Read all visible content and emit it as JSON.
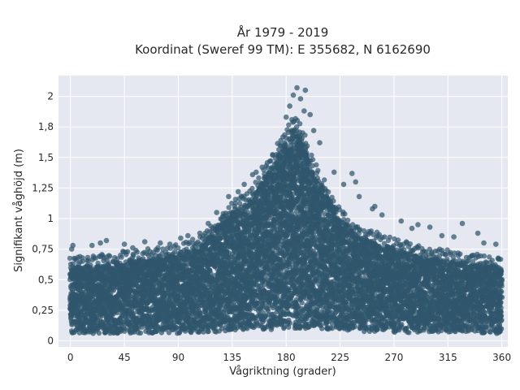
{
  "chart_data": {
    "type": "scatter",
    "title": "År 1979 - 2019",
    "subtitle": "Koordinat (Sweref 99 TM): E 355682, N 6162690",
    "xlabel": "Vågriktning (grader)",
    "ylabel": "Signifikant våghöjd (m)",
    "xlim": [
      -10,
      365
    ],
    "ylim": [
      -0.05,
      2.17
    ],
    "x_ticks": [
      0,
      45,
      90,
      135,
      180,
      225,
      270,
      315,
      360
    ],
    "x_tick_labels": [
      "0",
      "45",
      "90",
      "135",
      "180",
      "225",
      "270",
      "315",
      "360"
    ],
    "y_ticks": [
      0,
      0.25,
      0.5,
      0.75,
      1,
      1.25,
      1.5,
      1.75,
      2
    ],
    "y_tick_labels": [
      "0",
      "0,25",
      "0,5",
      "0,75",
      "1",
      "1,25",
      "1,5",
      "1,8",
      "2"
    ],
    "grid": true,
    "marker_color": "#2f566c",
    "background_color": "#e5e8f1",
    "upper_envelope": {
      "x": [
        0,
        30,
        60,
        90,
        110,
        120,
        135,
        150,
        160,
        170,
        180,
        185,
        190,
        195,
        200,
        210,
        225,
        240,
        270,
        300,
        330,
        360
      ],
      "y": [
        0.6,
        0.63,
        0.66,
        0.7,
        0.78,
        0.9,
        1.05,
        1.15,
        1.3,
        1.45,
        1.65,
        1.75,
        1.72,
        1.62,
        1.45,
        1.25,
        1.0,
        0.85,
        0.75,
        0.68,
        0.63,
        0.6
      ]
    },
    "lower_envelope": {
      "x": [
        0,
        90,
        150,
        180,
        200,
        250,
        360
      ],
      "y": [
        0.06,
        0.06,
        0.08,
        0.1,
        0.1,
        0.07,
        0.06
      ]
    },
    "outliers": [
      {
        "x": 189,
        "y": 2.07
      },
      {
        "x": 196,
        "y": 2.05
      },
      {
        "x": 186,
        "y": 2.01
      },
      {
        "x": 192,
        "y": 1.98
      },
      {
        "x": 183,
        "y": 1.92
      },
      {
        "x": 195,
        "y": 1.88
      },
      {
        "x": 200,
        "y": 1.85
      },
      {
        "x": 180,
        "y": 1.83
      },
      {
        "x": 203,
        "y": 1.72
      },
      {
        "x": 208,
        "y": 1.62
      },
      {
        "x": 175,
        "y": 1.6
      },
      {
        "x": 220,
        "y": 1.38
      },
      {
        "x": 235,
        "y": 1.37
      },
      {
        "x": 238,
        "y": 1.3
      },
      {
        "x": 228,
        "y": 1.28
      },
      {
        "x": 241,
        "y": 1.18
      },
      {
        "x": 254,
        "y": 1.1
      },
      {
        "x": 260,
        "y": 1.03
      },
      {
        "x": 252,
        "y": 1.08
      },
      {
        "x": 276,
        "y": 0.98
      },
      {
        "x": 290,
        "y": 0.95
      },
      {
        "x": 300,
        "y": 0.93
      },
      {
        "x": 327,
        "y": 0.96
      },
      {
        "x": 340,
        "y": 0.88
      },
      {
        "x": 310,
        "y": 0.86
      },
      {
        "x": 285,
        "y": 0.92
      },
      {
        "x": 155,
        "y": 1.38
      },
      {
        "x": 152,
        "y": 1.36
      },
      {
        "x": 160,
        "y": 1.42
      },
      {
        "x": 145,
        "y": 1.28
      },
      {
        "x": 140,
        "y": 1.22
      },
      {
        "x": 132,
        "y": 1.18
      },
      {
        "x": 122,
        "y": 1.05
      },
      {
        "x": 128,
        "y": 1.02
      },
      {
        "x": 115,
        "y": 0.96
      },
      {
        "x": 108,
        "y": 0.88
      },
      {
        "x": 98,
        "y": 0.86
      },
      {
        "x": 92,
        "y": 0.84
      },
      {
        "x": 75,
        "y": 0.8
      },
      {
        "x": 62,
        "y": 0.81
      },
      {
        "x": 45,
        "y": 0.79
      },
      {
        "x": 30,
        "y": 0.82
      },
      {
        "x": 25,
        "y": 0.8
      },
      {
        "x": 18,
        "y": 0.78
      },
      {
        "x": 2,
        "y": 0.78
      },
      {
        "x": 1,
        "y": 0.75
      },
      {
        "x": 52,
        "y": 0.76
      },
      {
        "x": 83,
        "y": 0.79
      },
      {
        "x": 345,
        "y": 0.8
      },
      {
        "x": 355,
        "y": 0.79
      },
      {
        "x": 320,
        "y": 0.85
      }
    ]
  }
}
